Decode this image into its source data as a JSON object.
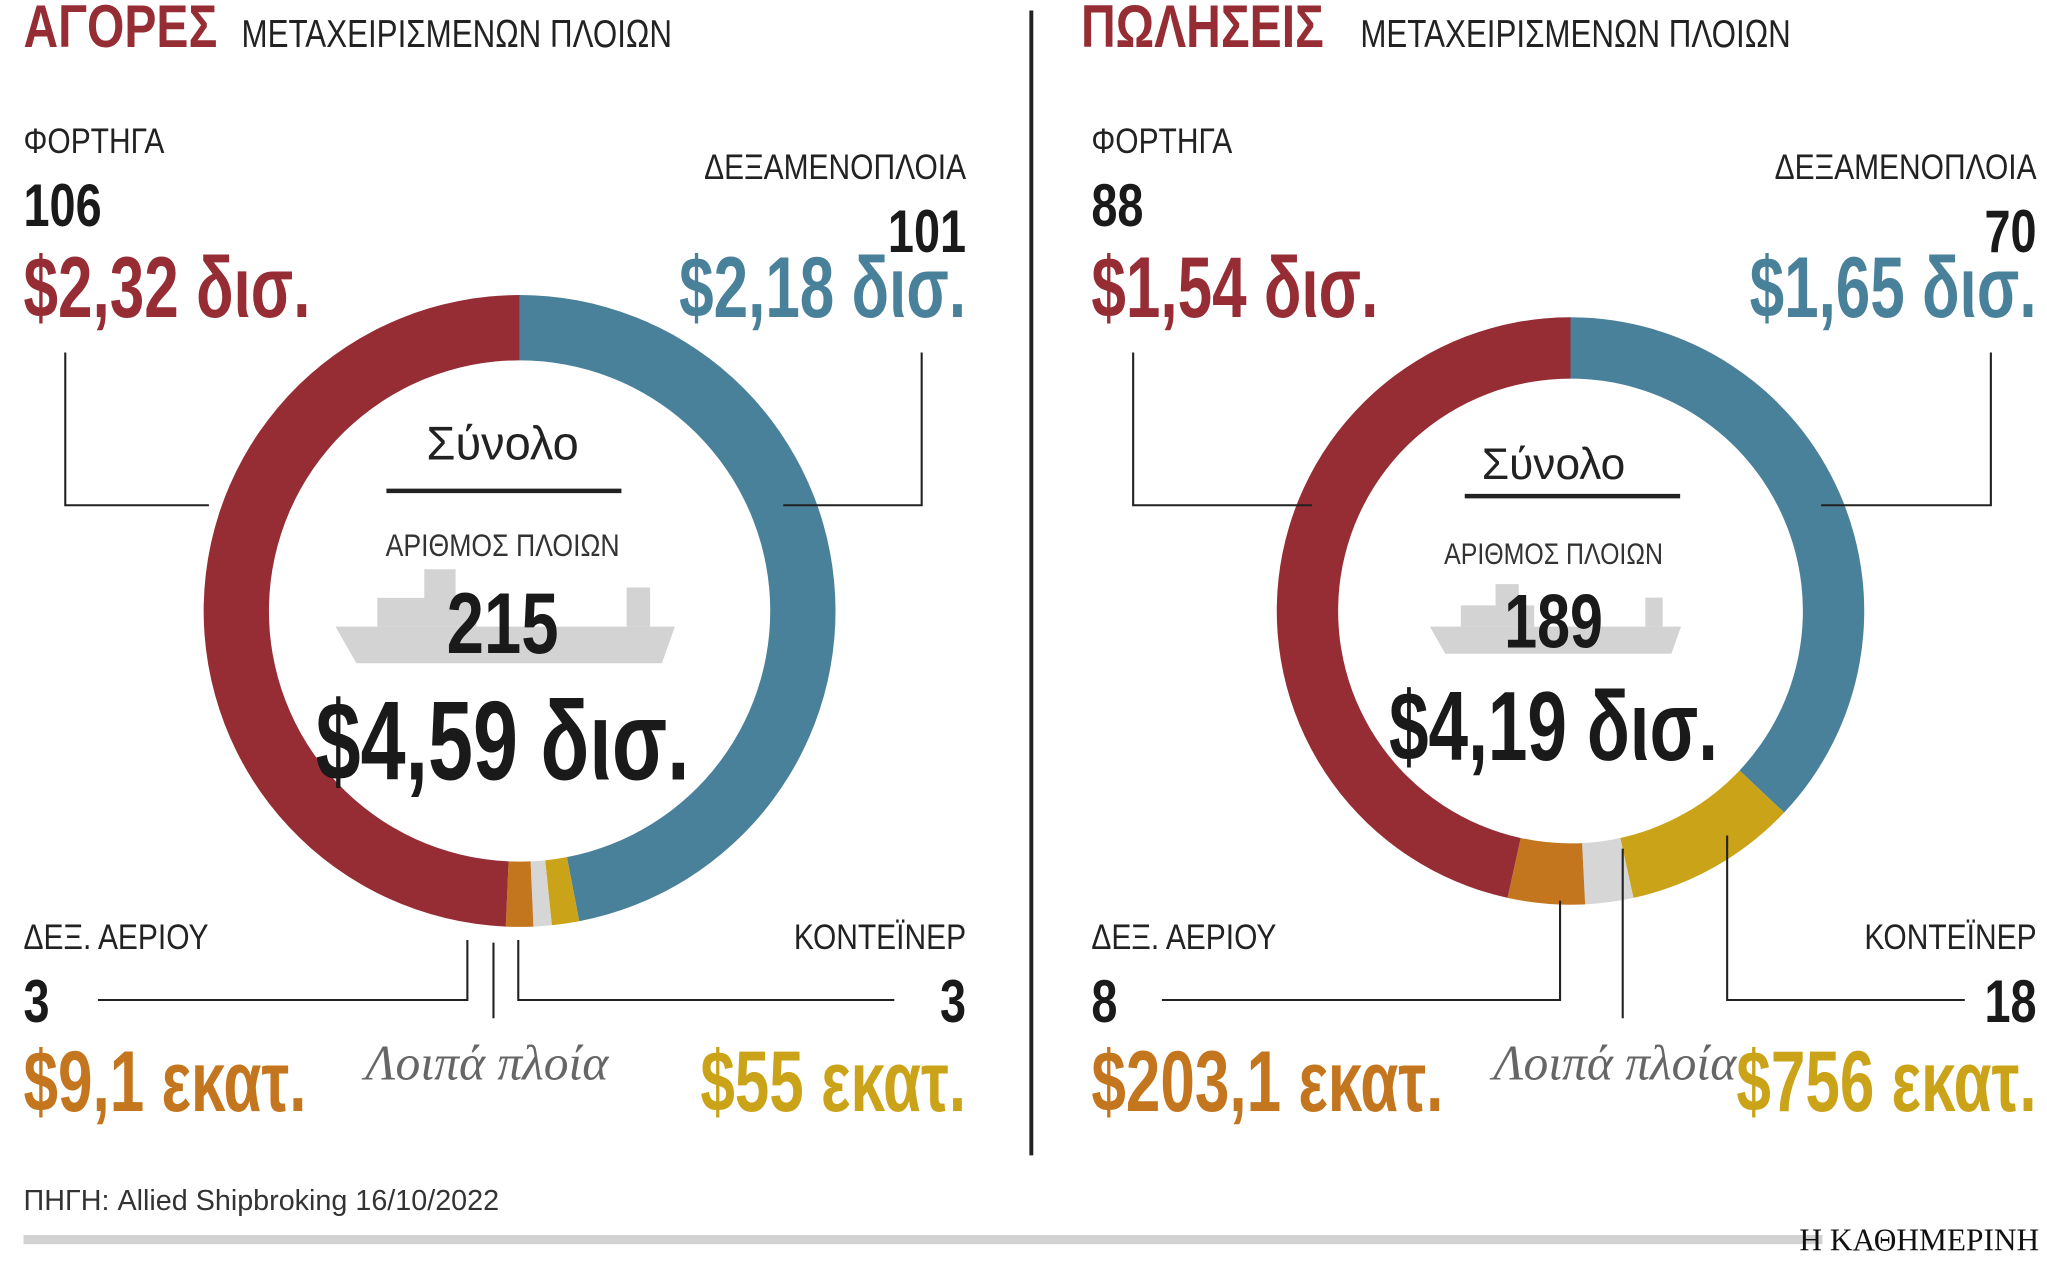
{
  "chart_data": [
    {
      "type": "donut",
      "title": "ΑΓΟΡΕΣ",
      "subtitle": "ΜΕΤΑΧΕΙΡΙΣΜΕΝΩΝ ΠΛΟΙΩΝ",
      "center_title": "Σύνολο",
      "center_subtitle": "ΑΡΙΘΜΟΣ ΠΛΟΙΩΝ",
      "total_count": 215,
      "total_value": {
        "value": 4.59,
        "label": "$4,59 δισ."
      },
      "categories": [
        "ΔΕΞΑΜΕΝΟΠΛΟΙΑ",
        "ΚΟΝΤΕΪΝΕΡ",
        "Λοιπά πλοία",
        "ΔΕΞ. ΑΕΡΙΟΥ",
        "ΦΟΡΤΗΓΑ"
      ],
      "values": [
        101,
        3,
        2,
        3,
        106
      ],
      "amount_labels": [
        "$2,18 δισ.",
        "$55 εκατ.",
        null,
        "$9,1 εκατ.",
        "$2,32 δισ."
      ],
      "colors": [
        "#4a819a",
        "#cba318",
        "#d6d6d6",
        "#c4761e",
        "#962d35"
      ]
    },
    {
      "type": "donut",
      "title": "ΠΩΛΗΣΕΙΣ",
      "subtitle": "ΜΕΤΑΧΕΙΡΙΣΜΕΝΩΝ ΠΛΟΙΩΝ",
      "center_title": "Σύνολο",
      "center_subtitle": "ΑΡΙΘΜΟΣ ΠΛΟΙΩΝ",
      "total_count": 189,
      "total_value": {
        "value": 4.19,
        "label": "$4,19 δισ."
      },
      "categories": [
        "ΔΕΞΑΜΕΝΟΠΛΟΙΑ",
        "ΚΟΝΤΕΪΝΕΡ",
        "Λοιπά πλοία",
        "ΔΕΞ. ΑΕΡΙΟΥ",
        "ΦΟΡΤΗΓΑ"
      ],
      "values": [
        70,
        18,
        5,
        8,
        88
      ],
      "amount_labels": [
        "$1,65 δισ.",
        "$756 εκατ.",
        null,
        "$203,1 εκατ.",
        "$1,54 δισ."
      ],
      "colors": [
        "#4a819a",
        "#cba318",
        "#d6d6d6",
        "#c4761e",
        "#962d35"
      ]
    }
  ],
  "source": "ΠΗΓΗ: Allied Shipbroking 16/10/2022",
  "brand": "Η ΚΑΘΗΜΕΡΙΝΗ"
}
